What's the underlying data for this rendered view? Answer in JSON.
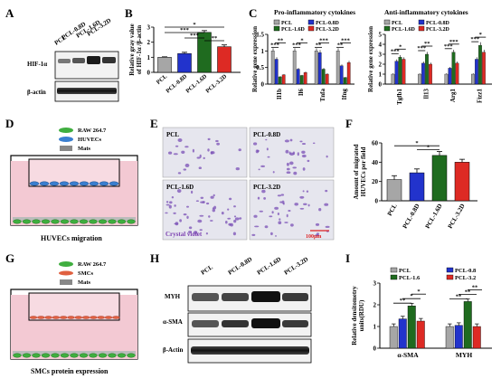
{
  "panels": {
    "A": "A",
    "B": "B",
    "C": "C",
    "D": "D",
    "E": "E",
    "F": "F",
    "G": "G",
    "H": "H",
    "I": "I"
  },
  "colors": {
    "pcl": "#a6a6a6",
    "d08": "#2233cc",
    "d16": "#1f6b1f",
    "d32": "#dd2a24",
    "gel": "#f3c9d3"
  },
  "panelA": {
    "lanes": [
      "PCL",
      "PCL-0.8D",
      "PCL-1.6D",
      "PCL-3.2D"
    ],
    "bands": [
      "HIF-1α",
      "β-actin"
    ]
  },
  "chart_data": [
    {
      "type": "bar",
      "panel": "B",
      "categories": [
        "PCL",
        "PCL-0.8D",
        "PCL-1.6D",
        "PCL-3.2D"
      ],
      "values": [
        1.0,
        1.25,
        2.65,
        1.7
      ],
      "errors": [
        0.03,
        0.08,
        0.12,
        0.12
      ],
      "ylabel": "Relative gray value of HIF-1α /β-actin",
      "ylim": [
        0,
        3
      ],
      "yticks": [
        0,
        1,
        2,
        3
      ],
      "significance": [
        "*",
        "***",
        "***",
        "**",
        "**"
      ]
    },
    {
      "type": "bar",
      "panel": "C-left",
      "title": "Pro-inflammatory cytokines",
      "ylabel": "Relative gene expression",
      "ylim": [
        0,
        1.5
      ],
      "yticks": [
        0,
        0.5,
        1,
        1.5
      ],
      "categories": [
        "Il1b",
        "Il6",
        "Tnfa",
        "Ifng"
      ],
      "series": [
        {
          "name": "PCL",
          "values": [
            1.0,
            1.0,
            1.0,
            1.0
          ]
        },
        {
          "name": "PCL-0.8D",
          "values": [
            0.75,
            0.45,
            0.95,
            0.55
          ]
        },
        {
          "name": "PCL-1.6D",
          "values": [
            0.22,
            0.26,
            0.45,
            0.2
          ]
        },
        {
          "name": "PCL-3.2D",
          "values": [
            0.28,
            0.35,
            0.3,
            0.65
          ]
        }
      ],
      "significance": [
        "***",
        "**",
        "***",
        "*",
        "**",
        "***",
        "**",
        "***"
      ]
    },
    {
      "type": "bar",
      "panel": "C-right",
      "title": "Anti-inflammatory cytokines",
      "ylabel": "Relative gene expression",
      "ylim": [
        0,
        5
      ],
      "yticks": [
        0,
        1,
        2,
        3,
        4,
        5
      ],
      "categories": [
        "Tgfb1",
        "Il13",
        "Arg1",
        "Fizz1"
      ],
      "series": [
        {
          "name": "PCL",
          "values": [
            1.0,
            1.0,
            1.0,
            1.0
          ]
        },
        {
          "name": "PCL-0.8D",
          "values": [
            2.3,
            2.1,
            1.6,
            2.5
          ]
        },
        {
          "name": "PCL-1.6D",
          "values": [
            2.7,
            3.0,
            3.2,
            3.9
          ]
        },
        {
          "name": "PCL-3.2D",
          "values": [
            2.5,
            2.0,
            2.1,
            3.2
          ]
        }
      ],
      "significance": [
        "***",
        "*",
        "***",
        "**",
        "***",
        "***",
        "***",
        "*",
        "***"
      ]
    },
    {
      "type": "bar",
      "panel": "F",
      "categories": [
        "PCL",
        "PCL-0.8D",
        "PCL-1.6D",
        "PCL-3.2D"
      ],
      "values": [
        22,
        29,
        47,
        40
      ],
      "errors": [
        4,
        4,
        4,
        3
      ],
      "ylabel": "Amount of migrated HUVECs per field",
      "ylim": [
        0,
        60
      ],
      "yticks": [
        0,
        20,
        40,
        60
      ],
      "significance": [
        "*",
        "*"
      ]
    },
    {
      "type": "bar",
      "panel": "I",
      "ylabel": "Relative densitometry units(RDU)",
      "ylim": [
        0,
        3
      ],
      "yticks": [
        0,
        1,
        2,
        3
      ],
      "categories": [
        "α-SMA",
        "MYH"
      ],
      "series": [
        {
          "name": "PCL",
          "values": [
            1.0,
            1.0
          ]
        },
        {
          "name": "PCL-0.8",
          "values": [
            1.35,
            1.05
          ]
        },
        {
          "name": "PCL-1.6",
          "values": [
            1.95,
            2.15
          ]
        },
        {
          "name": "PCL-3.2",
          "values": [
            1.25,
            1.0
          ]
        }
      ],
      "significance": [
        "**",
        "*",
        "*",
        "**",
        "**",
        "**"
      ]
    }
  ],
  "panelD": {
    "legend": [
      "RAW 264.7",
      "HUVECs",
      "Mats"
    ],
    "caption": "HUVECs migration"
  },
  "panelE": {
    "tiles": [
      "PCL",
      "PCL-0.8D",
      "PCL-1.6D",
      "PCL-3.2D"
    ],
    "stain": "Crystal violet",
    "scale": "100μm"
  },
  "panelG": {
    "legend": [
      "RAW 264.7",
      "SMCs",
      "Mats"
    ],
    "caption": "SMCs protein expression"
  },
  "panelH": {
    "lanes": [
      "PCL",
      "PCL-0.8D",
      "PCL-1.6D",
      "PCL-3.2D"
    ],
    "bands": [
      "MYH",
      "α-SMA",
      "β-Actin"
    ]
  }
}
